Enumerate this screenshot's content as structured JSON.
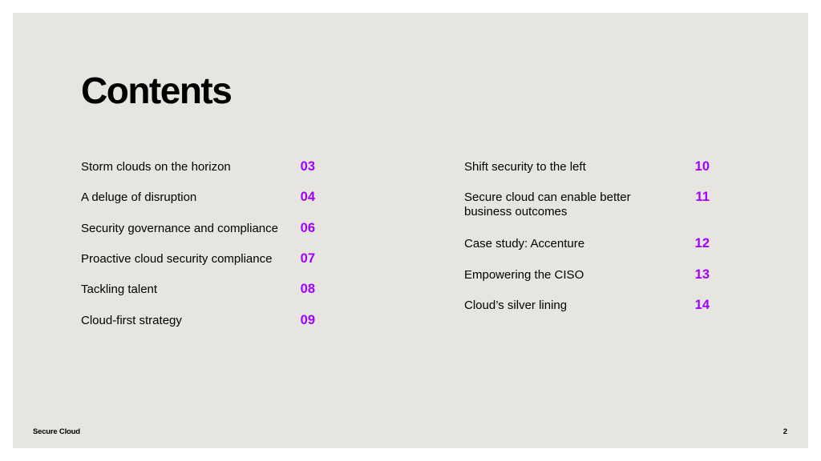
{
  "title": "Contents",
  "toc": {
    "left": [
      {
        "label": "Storm clouds on the horizon",
        "page": "03"
      },
      {
        "label": "A deluge of disruption",
        "page": "04"
      },
      {
        "label": "Security governance and compliance",
        "page": "06"
      },
      {
        "label": "Proactive cloud security compliance",
        "page": "07"
      },
      {
        "label": "Tackling talent",
        "page": "08"
      },
      {
        "label": "Cloud-first strategy",
        "page": "09"
      }
    ],
    "right": [
      {
        "label_line1": "Shift security to the left",
        "label_line2": "",
        "page": "10"
      },
      {
        "label_line1": "Secure cloud can enable better",
        "label_line2": "business outcomes",
        "page": "11"
      },
      {
        "label_line1": "Case study: Accenture",
        "label_line2": "",
        "page": "12"
      },
      {
        "label_line1": "Empowering the CISO",
        "label_line2": "",
        "page": "13"
      },
      {
        "label_line1": "Cloud’s silver lining",
        "label_line2": "",
        "page": "14"
      }
    ]
  },
  "footer": {
    "document_name": "Secure Cloud",
    "page_number": "2"
  },
  "colors": {
    "background": "#e7e5df",
    "accent": "#a100ff",
    "text": "#000000"
  }
}
